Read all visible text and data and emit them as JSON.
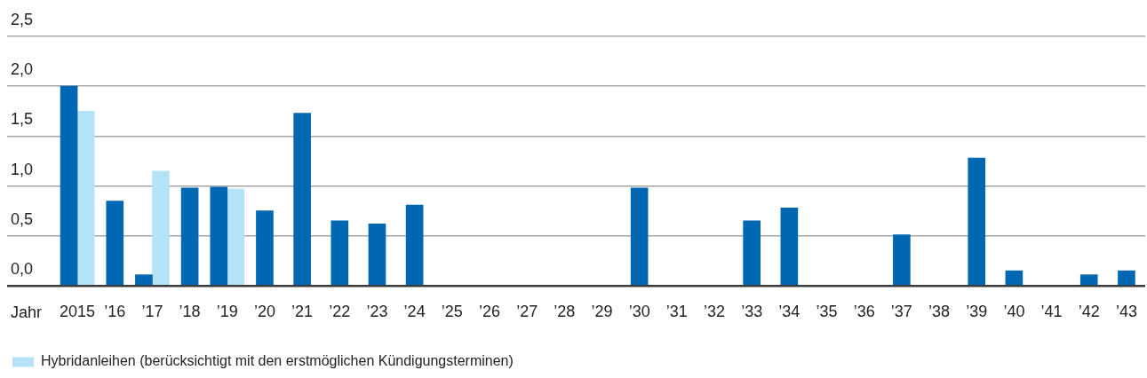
{
  "chart_data": {
    "type": "bar",
    "xlabel": "Jahr",
    "categories": [
      "2015",
      "’16",
      "’17",
      "’18",
      "’19",
      "’20",
      "’21",
      "’22",
      "’23",
      "’24",
      "’25",
      "’26",
      "’27",
      "’28",
      "’29",
      "’30",
      "’31",
      "’32",
      "’33",
      "’34",
      "’35",
      "’36",
      "’37",
      "’38",
      "’39",
      "’40",
      "’41",
      "’42",
      "’43"
    ],
    "series": [
      {
        "color": "#0067b2",
        "values": [
          2.0,
          0.85,
          0.11,
          0.98,
          0.99,
          0.75,
          1.73,
          0.65,
          0.62,
          0.81,
          null,
          null,
          null,
          null,
          null,
          0.98,
          null,
          null,
          0.65,
          0.78,
          null,
          null,
          0.51,
          null,
          1.28,
          0.15,
          null,
          0.11,
          0.15
        ]
      },
      {
        "name": "Hybridanleihen (berücksichtigt mit den erstmöglichen Kündigungsterminen)",
        "color": "#b4e3f8",
        "values": [
          1.75,
          null,
          1.15,
          null,
          0.97,
          null,
          null,
          null,
          null,
          null,
          null,
          null,
          null,
          null,
          null,
          null,
          null,
          null,
          null,
          null,
          null,
          null,
          null,
          null,
          null,
          null,
          null,
          null,
          null
        ]
      }
    ],
    "ylim": [
      0,
      2.5
    ],
    "yticks": [
      {
        "value": 0,
        "label": "0,0"
      },
      {
        "value": 0.5,
        "label": "0,5"
      },
      {
        "value": 1,
        "label": "1,0"
      },
      {
        "value": 1.5,
        "label": "1,5"
      },
      {
        "value": 2,
        "label": "2,0"
      },
      {
        "value": 2.5,
        "label": "2,5"
      }
    ],
    "grid": "y",
    "legend": "bottom left"
  }
}
